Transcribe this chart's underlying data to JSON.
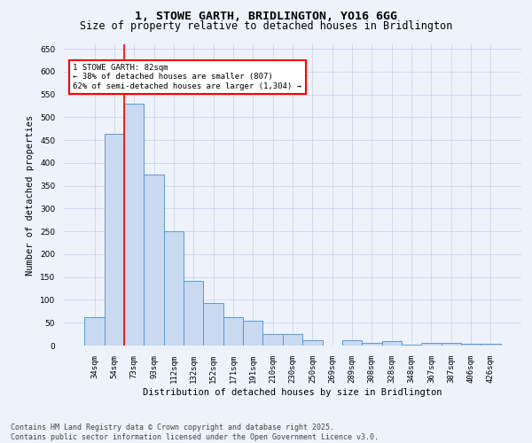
{
  "title_line1": "1, STOWE GARTH, BRIDLINGTON, YO16 6GG",
  "title_line2": "Size of property relative to detached houses in Bridlington",
  "xlabel": "Distribution of detached houses by size in Bridlington",
  "ylabel": "Number of detached properties",
  "categories": [
    "34sqm",
    "54sqm",
    "73sqm",
    "93sqm",
    "112sqm",
    "132sqm",
    "152sqm",
    "171sqm",
    "191sqm",
    "210sqm",
    "230sqm",
    "250sqm",
    "269sqm",
    "289sqm",
    "308sqm",
    "328sqm",
    "348sqm",
    "367sqm",
    "387sqm",
    "406sqm",
    "426sqm"
  ],
  "values": [
    62,
    463,
    530,
    375,
    250,
    142,
    93,
    62,
    55,
    25,
    25,
    11,
    0,
    11,
    5,
    9,
    2,
    5,
    5,
    3,
    3
  ],
  "bar_color": "#c8d9f0",
  "bar_edge_color": "#5a9bd5",
  "red_line_index": 1.5,
  "annotation_text": "1 STOWE GARTH: 82sqm\n← 38% of detached houses are smaller (807)\n62% of semi-detached houses are larger (1,304) →",
  "annotation_box_color": "white",
  "annotation_box_edge": "red",
  "ylim": [
    0,
    660
  ],
  "yticks": [
    0,
    50,
    100,
    150,
    200,
    250,
    300,
    350,
    400,
    450,
    500,
    550,
    600,
    650
  ],
  "footer_line1": "Contains HM Land Registry data © Crown copyright and database right 2025.",
  "footer_line2": "Contains public sector information licensed under the Open Government Licence v3.0.",
  "background_color": "#eef2fb",
  "grid_color": "#c8d0e8",
  "title_fontsize": 9.5,
  "subtitle_fontsize": 8.5,
  "tick_fontsize": 6.5,
  "ylabel_fontsize": 7.5,
  "xlabel_fontsize": 7.5,
  "annotation_fontsize": 6.5,
  "footer_fontsize": 6.0
}
